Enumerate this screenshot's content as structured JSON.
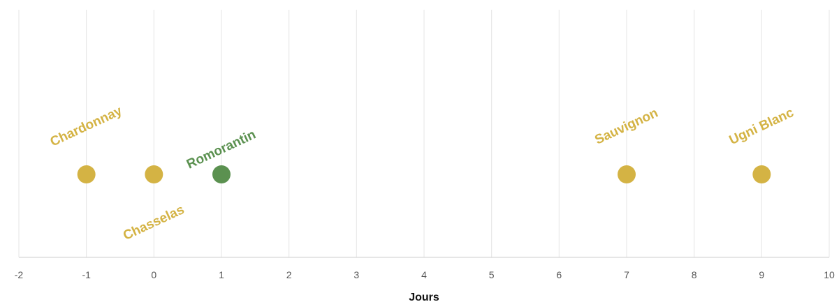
{
  "chart_data": {
    "type": "scatter",
    "title": "",
    "xlabel": "Jours",
    "ylabel": "",
    "xlim": [
      -2,
      10
    ],
    "x_ticks": [
      -2,
      -1,
      0,
      1,
      2,
      3,
      4,
      5,
      6,
      7,
      8,
      9,
      10
    ],
    "grid": true,
    "legend": "none",
    "points": [
      {
        "label": "Chardonnay",
        "x": -1,
        "color": "#d4b344"
      },
      {
        "label": "Chasselas",
        "x": 0,
        "color": "#d4b344"
      },
      {
        "label": "Romorantin",
        "x": 1,
        "color": "#5b9150"
      },
      {
        "label": "Sauvignon",
        "x": 7,
        "color": "#d4b344"
      },
      {
        "label": "Ugni Blanc",
        "x": 9,
        "color": "#d4b344"
      }
    ]
  }
}
